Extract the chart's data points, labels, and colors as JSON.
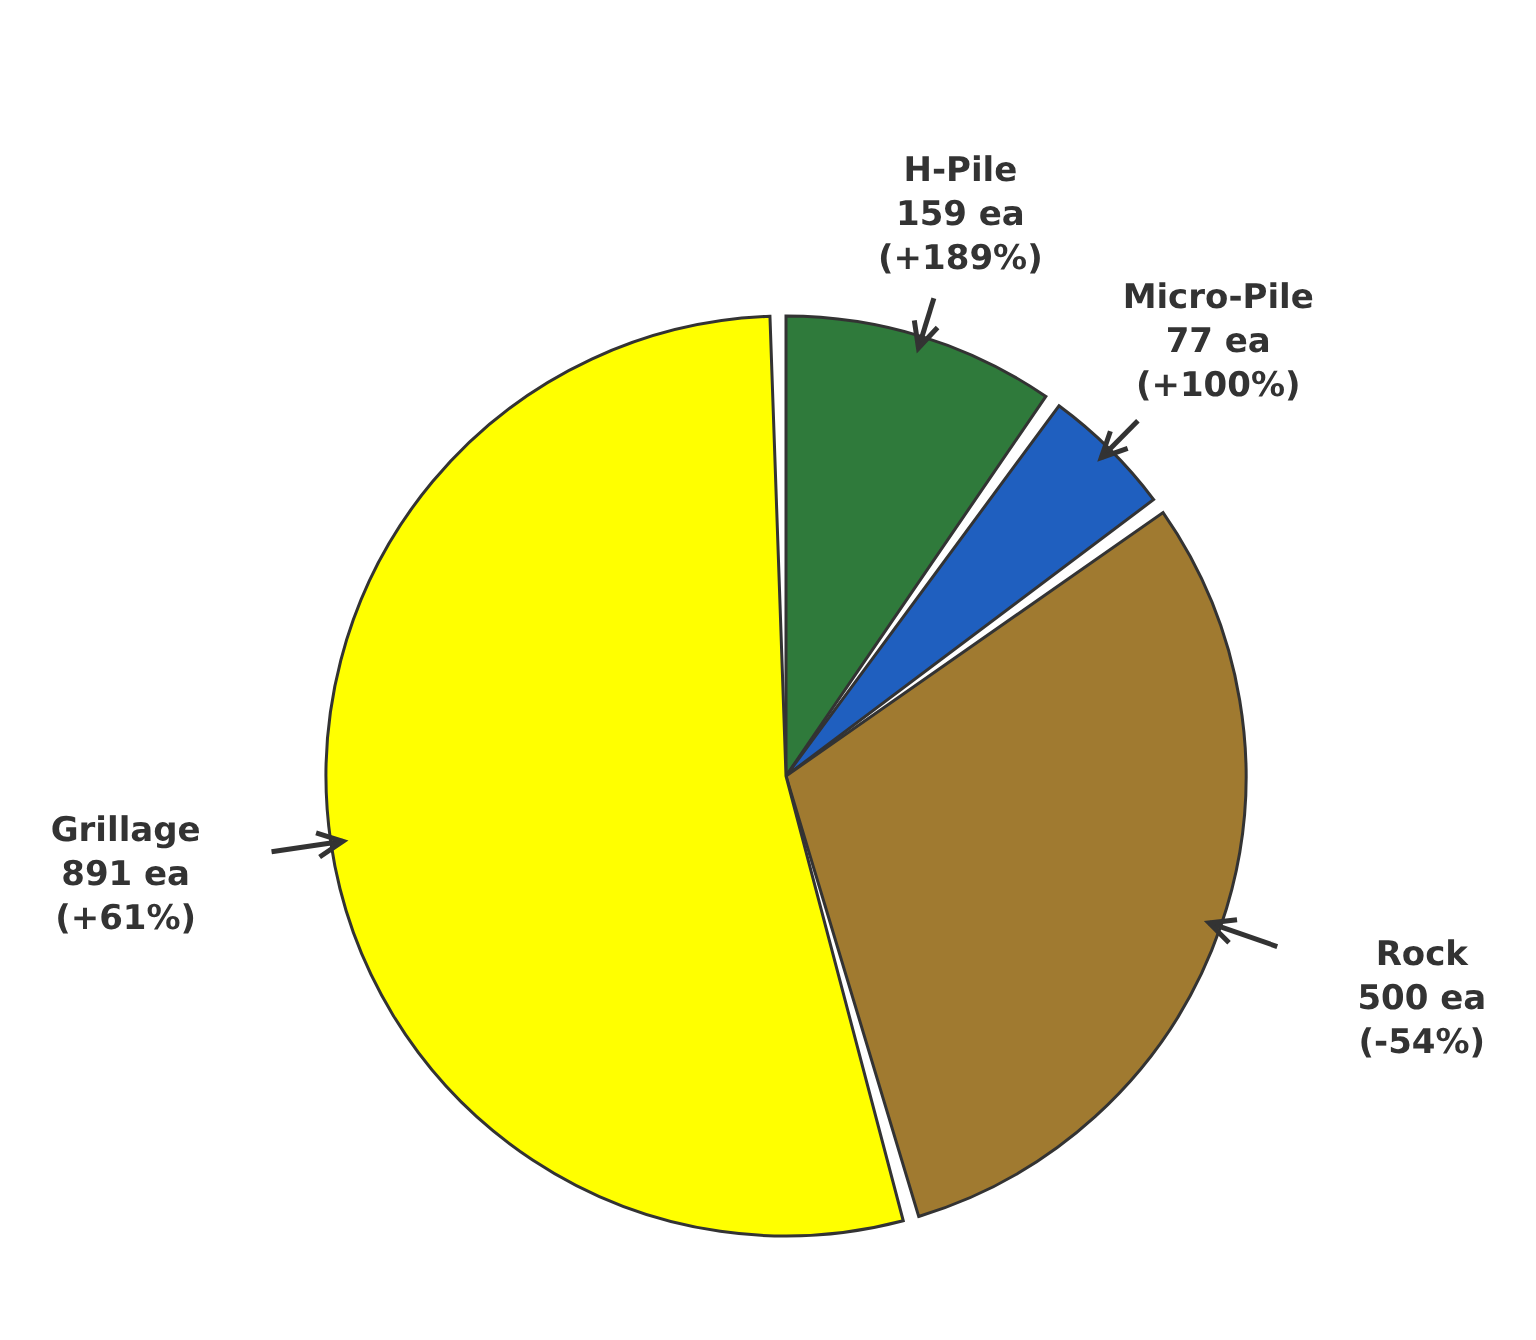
{
  "chart_data": {
    "type": "pie",
    "categories": [
      "H-Pile",
      "Micro-Pile",
      "Rock",
      "Grillage"
    ],
    "values": [
      159,
      77,
      500,
      891
    ],
    "colors": [
      "#2f7a3b",
      "#1f5fbf",
      "#a07a30",
      "#ffff00"
    ],
    "value_labels": [
      "159 ea",
      "77 ea",
      "500 ea",
      "891 ea"
    ],
    "annotations": [
      "(+189%)",
      "(+100%)",
      "(-54%)",
      "(+61%)"
    ]
  }
}
